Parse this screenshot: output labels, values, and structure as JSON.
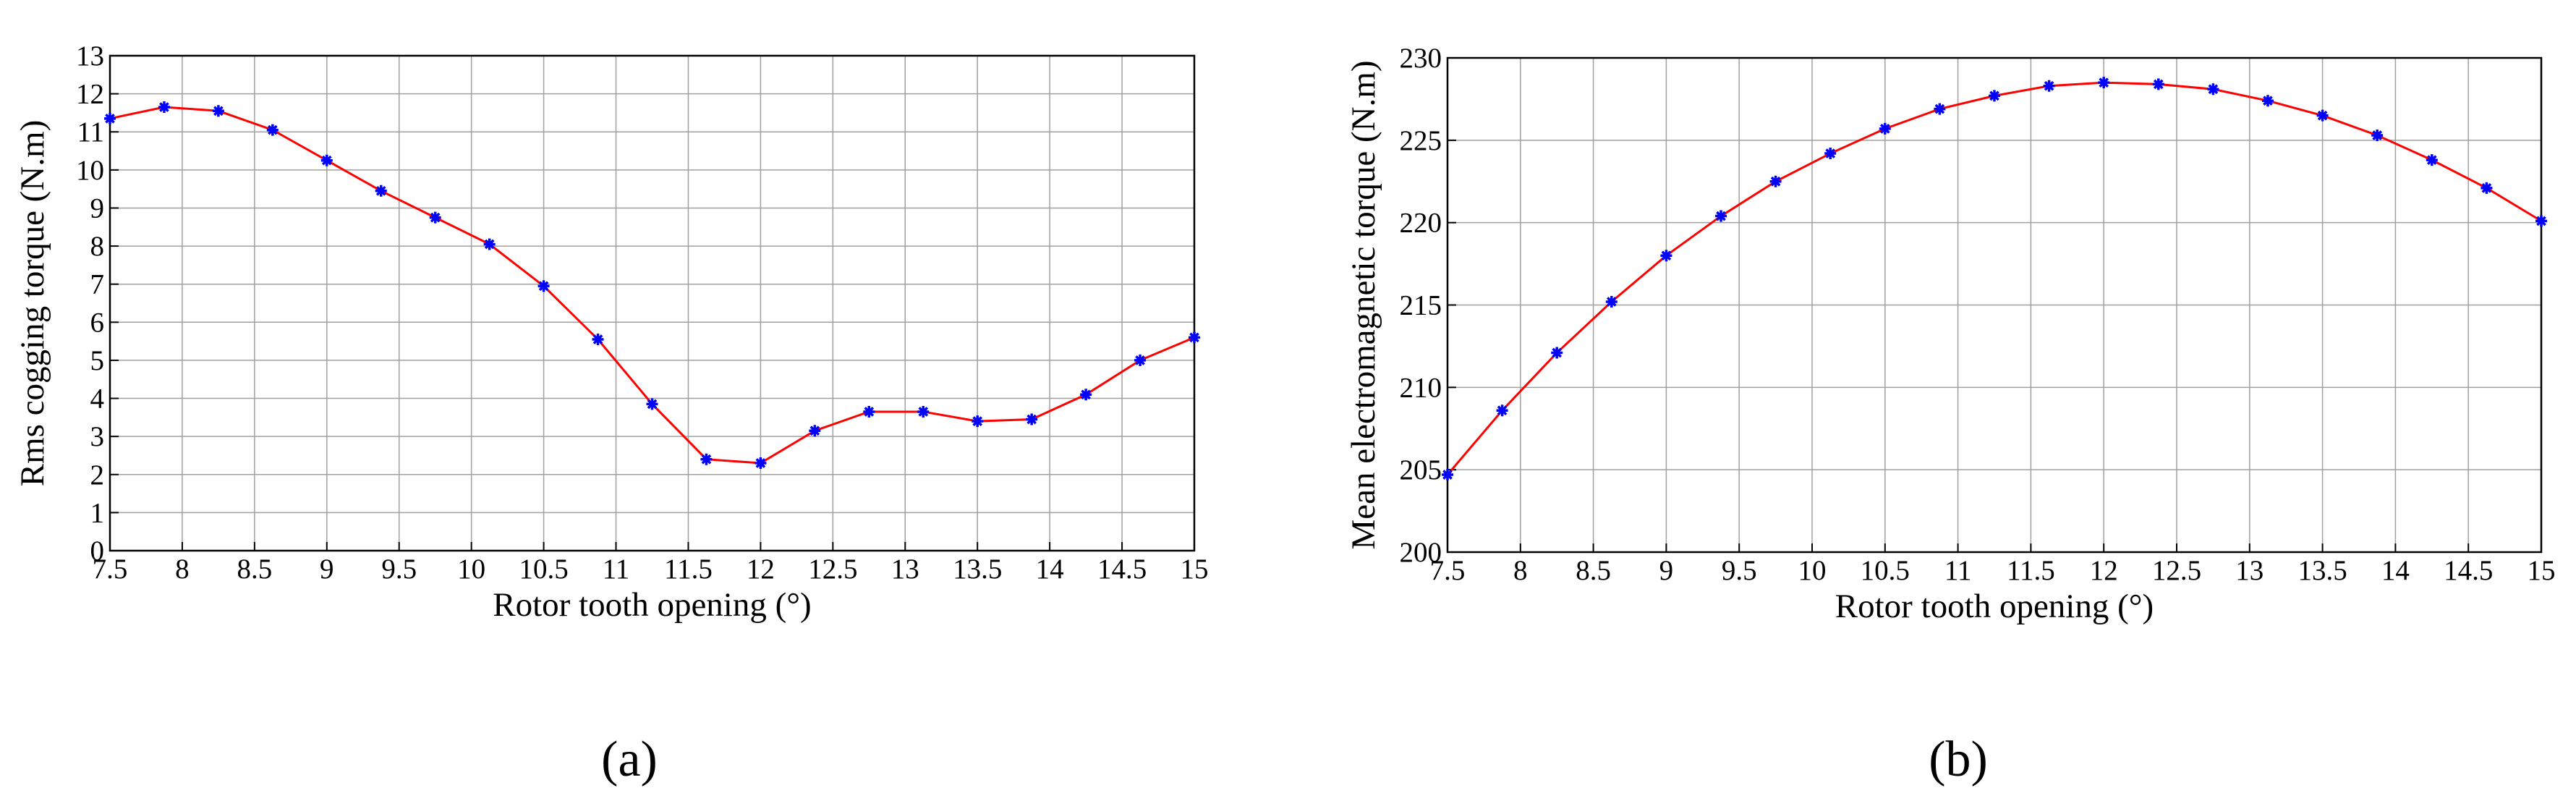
{
  "chart_data": [
    {
      "type": "line",
      "caption": "(a)",
      "x_label": "Rotor tooth opening (°)",
      "y_label": "Rms cogging torque (N.m)",
      "x": [
        7.5,
        7.875,
        8.25,
        8.625,
        9,
        9.375,
        9.75,
        10.125,
        10.5,
        10.875,
        11.25,
        11.625,
        12,
        12.375,
        12.75,
        13.125,
        13.5,
        13.875,
        14.25,
        14.625,
        15
      ],
      "series": [
        {
          "color": "#ff0000",
          "marker_color": "#0000ff",
          "values": [
            11.35,
            11.65,
            11.55,
            11.05,
            10.25,
            9.45,
            8.75,
            8.05,
            6.95,
            5.55,
            3.85,
            2.4,
            2.3,
            3.15,
            3.65,
            3.65,
            3.4,
            3.45,
            4.1,
            5.0,
            5.6
          ]
        }
      ],
      "xlim": [
        7.5,
        15
      ],
      "xticks": [
        7.5,
        8,
        8.5,
        9,
        9.5,
        10,
        10.5,
        11,
        11.5,
        12,
        12.5,
        13,
        13.5,
        14,
        14.5,
        15
      ],
      "ylim": [
        0,
        13
      ],
      "yticks": [
        0,
        1,
        2,
        3,
        4,
        5,
        6,
        7,
        8,
        9,
        10,
        11,
        12,
        13
      ],
      "grid": true
    },
    {
      "type": "line",
      "caption": "(b)",
      "x_label": "Rotor tooth opening (°)",
      "y_label": "Mean electromagnetic torque (N.m)",
      "x": [
        7.5,
        7.875,
        8.25,
        8.625,
        9,
        9.375,
        9.75,
        10.125,
        10.5,
        10.875,
        11.25,
        11.625,
        12,
        12.375,
        12.75,
        13.125,
        13.5,
        13.875,
        14.25,
        14.625,
        15
      ],
      "series": [
        {
          "color": "#ff0000",
          "marker_color": "#0000ff",
          "values": [
            204.7,
            208.6,
            212.1,
            215.2,
            218.0,
            220.4,
            222.5,
            224.2,
            225.7,
            226.9,
            227.7,
            228.3,
            228.5,
            228.4,
            228.1,
            227.4,
            226.5,
            225.3,
            223.8,
            222.1,
            220.1
          ]
        }
      ],
      "xlim": [
        7.5,
        15
      ],
      "xticks": [
        7.5,
        8,
        8.5,
        9,
        9.5,
        10,
        10.5,
        11,
        11.5,
        12,
        12.5,
        13,
        13.5,
        14,
        14.5,
        15
      ],
      "ylim": [
        200,
        230
      ],
      "yticks": [
        200,
        205,
        210,
        215,
        220,
        225,
        230
      ],
      "grid": true
    }
  ]
}
